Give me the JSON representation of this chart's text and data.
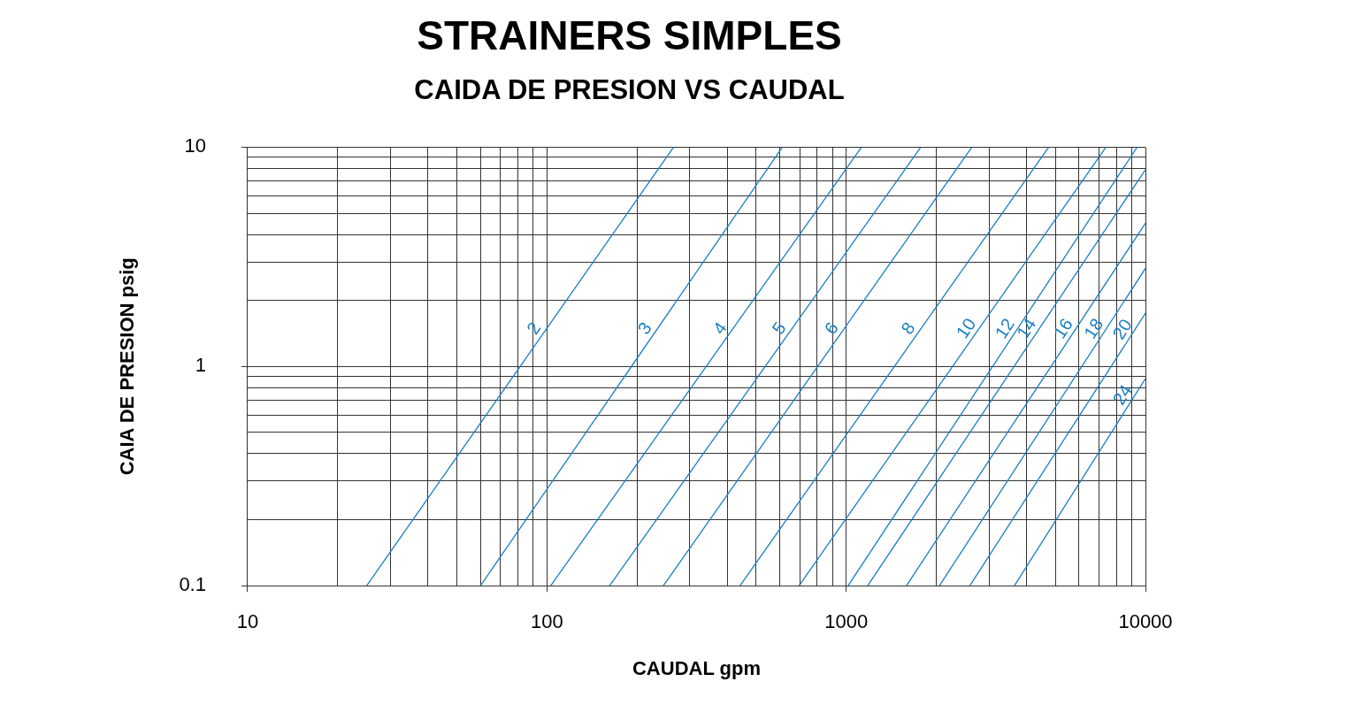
{
  "chart_data": {
    "type": "line",
    "title": "STRAINERS SIMPLES",
    "subtitle": "CAIDA DE PRESION VS CAUDAL",
    "xlabel": "CAUDAL gpm",
    "ylabel": "CAIA DE PRESION psig",
    "log": "xy",
    "grid": true,
    "legend": false,
    "xlim": [
      10,
      10000
    ],
    "ylim": [
      0.1,
      10
    ],
    "xticks": [
      10,
      {
        "value": 20,
        "label": null
      },
      {
        "value": 30,
        "label": null
      },
      {
        "value": 40,
        "label": null
      },
      {
        "value": 50,
        "label": null
      },
      {
        "value": 60,
        "label": null
      },
      {
        "value": 70,
        "label": null
      },
      {
        "value": 80,
        "label": null
      },
      {
        "value": 90,
        "label": null
      },
      100,
      {
        "value": 200,
        "label": null
      },
      {
        "value": 300,
        "label": null
      },
      {
        "value": 400,
        "label": null
      },
      {
        "value": 500,
        "label": null
      },
      {
        "value": 600,
        "label": null
      },
      {
        "value": 700,
        "label": null
      },
      {
        "value": 800,
        "label": null
      },
      {
        "value": 900,
        "label": null
      },
      1000,
      {
        "value": 2000,
        "label": null
      },
      {
        "value": 3000,
        "label": null
      },
      {
        "value": 4000,
        "label": null
      },
      {
        "value": 5000,
        "label": null
      },
      {
        "value": 6000,
        "label": null
      },
      {
        "value": 7000,
        "label": null
      },
      {
        "value": 8000,
        "label": null
      },
      {
        "value": 9000,
        "label": null
      },
      10000
    ],
    "yticks": [
      0.1,
      {
        "value": 0.2,
        "label": null
      },
      {
        "value": 0.3,
        "label": null
      },
      {
        "value": 0.4,
        "label": null
      },
      {
        "value": 0.5,
        "label": null
      },
      {
        "value": 0.6,
        "label": null
      },
      {
        "value": 0.7,
        "label": null
      },
      {
        "value": 0.8,
        "label": null
      },
      {
        "value": 0.9,
        "label": null
      },
      1,
      {
        "value": 2,
        "label": null
      },
      {
        "value": 3,
        "label": null
      },
      {
        "value": 4,
        "label": null
      },
      {
        "value": 5,
        "label": null
      },
      {
        "value": 6,
        "label": null
      },
      {
        "value": 7,
        "label": null
      },
      {
        "value": 8,
        "label": null
      },
      {
        "value": 9,
        "label": null
      },
      10
    ],
    "series": [
      {
        "name": "2",
        "color": "#1a7fc1",
        "x": [
          25,
          265
        ],
        "values": [
          0.1,
          10
        ]
      },
      {
        "name": "3",
        "color": "#1a7fc1",
        "x": [
          60,
          612
        ],
        "values": [
          0.1,
          10
        ]
      },
      {
        "name": "4",
        "color": "#1a7fc1",
        "x": [
          103,
          1125
        ],
        "values": [
          0.1,
          10
        ]
      },
      {
        "name": "5",
        "color": "#1a7fc1",
        "x": [
          162,
          1775
        ],
        "values": [
          0.1,
          10
        ]
      },
      {
        "name": "6",
        "color": "#1a7fc1",
        "x": [
          245,
          2630
        ],
        "values": [
          0.1,
          10
        ]
      },
      {
        "name": "8",
        "color": "#1a7fc1",
        "x": [
          442,
          4750
        ],
        "values": [
          0.1,
          10
        ]
      },
      {
        "name": "10",
        "color": "#1a7fc1",
        "x": [
          696,
          7380
        ],
        "values": [
          0.1,
          10
        ]
      },
      {
        "name": "12",
        "color": "#1a7fc1",
        "x": [
          1015,
          9380
        ],
        "values": [
          0.1,
          10
        ]
      },
      {
        "name": "14",
        "color": "#1a7fc1",
        "x": [
          1180,
          10000
        ],
        "values": [
          0.1,
          7.9
        ]
      },
      {
        "name": "16",
        "color": "#1a7fc1",
        "x": [
          1590,
          10000
        ],
        "values": [
          0.1,
          4.5
        ]
      },
      {
        "name": "18",
        "color": "#1a7fc1",
        "x": [
          2050,
          10000
        ],
        "values": [
          0.1,
          2.8
        ]
      },
      {
        "name": "20",
        "color": "#1a7fc1",
        "x": [
          2590,
          10000
        ],
        "values": [
          0.1,
          1.75
        ]
      },
      {
        "name": "24",
        "color": "#1a7fc1",
        "x": [
          3650,
          10000
        ],
        "values": [
          0.1,
          0.88
        ]
      }
    ]
  }
}
